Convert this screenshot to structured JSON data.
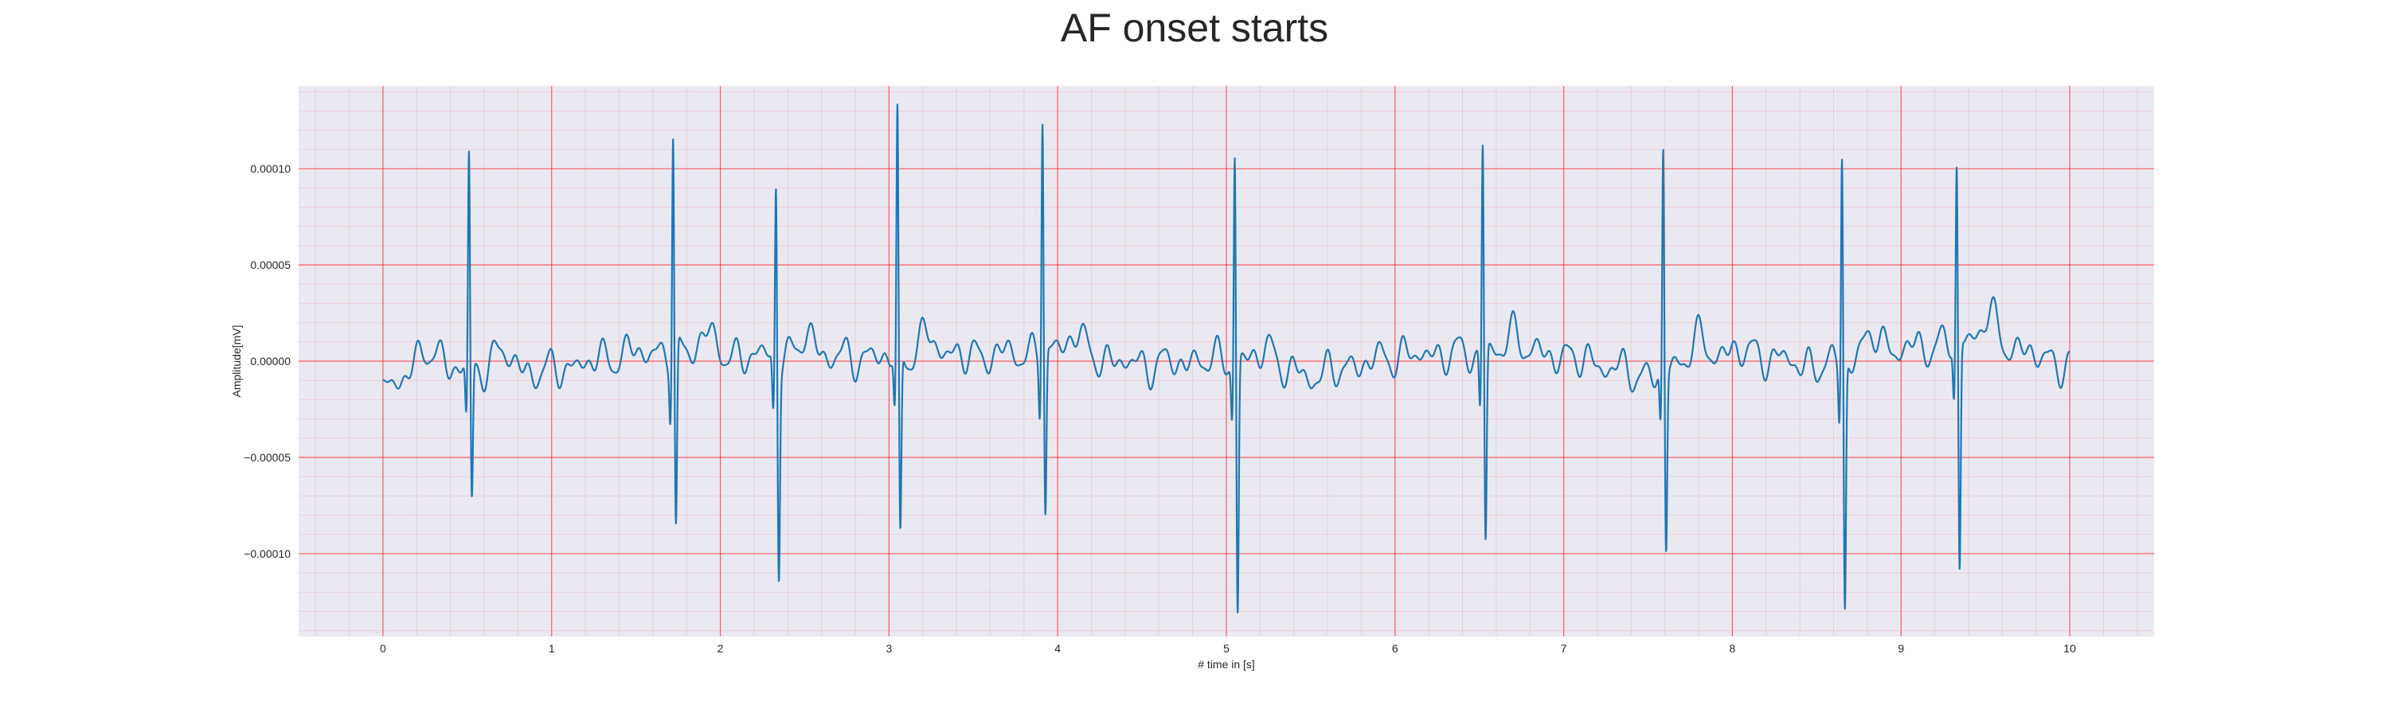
{
  "chart_data": {
    "type": "line",
    "title": "AF onset starts",
    "xlabel": "# time in [s]",
    "ylabel": "Amplitude[mV]",
    "xlim": [
      -0.5,
      10.5
    ],
    "ylim": [
      -0.000143,
      0.000143
    ],
    "xticks": [
      0,
      1,
      2,
      3,
      4,
      5,
      6,
      7,
      8,
      9,
      10
    ],
    "xtick_labels": [
      "0",
      "1",
      "2",
      "3",
      "4",
      "5",
      "6",
      "7",
      "8",
      "9",
      "10"
    ],
    "yticks": [
      0.0001,
      5e-05,
      0,
      -5e-05,
      -0.0001
    ],
    "ytick_labels": [
      "0.00010",
      "0.00005",
      "0.00000",
      "−0.00005",
      "−0.00010"
    ],
    "grid": "major and minor grid, red",
    "line_color": "#1f77b4",
    "background_color": "#eae9f2",
    "grid_color": "#ff0000",
    "r_peaks": [
      {
        "t": 0.51,
        "r": 0.000111,
        "s": -7.1e-05
      },
      {
        "t": 1.72,
        "r": 0.000118,
        "s": -9.6e-05
      },
      {
        "t": 2.33,
        "r": 9.6e-05,
        "s": -0.000107
      },
      {
        "t": 3.05,
        "r": 0.000128,
        "s": -9.6e-05
      },
      {
        "t": 3.91,
        "r": 0.000128,
        "s": -8.5e-05
      },
      {
        "t": 5.05,
        "r": 0.000114,
        "s": -0.000131
      },
      {
        "t": 6.52,
        "r": 0.000114,
        "s": -9.9e-05
      },
      {
        "t": 7.59,
        "r": 0.000117,
        "s": -9.4e-05
      },
      {
        "t": 8.65,
        "r": 0.000114,
        "s": -0.000129
      },
      {
        "t": 9.33,
        "r": 9.3e-05,
        "s": -0.000121
      }
    ],
    "baseline_samples": {
      "x": [
        0.0,
        0.25,
        0.5,
        1.0,
        1.5,
        2.0,
        2.5,
        3.0,
        3.5,
        4.0,
        4.5,
        5.0,
        5.5,
        6.0,
        6.5,
        7.0,
        7.5,
        8.0,
        8.5,
        9.0,
        9.5,
        10.0
      ],
      "y": [
        -1.8e-05,
        5e-06,
        -5e-06,
        -5e-06,
        5e-06,
        3e-06,
        2e-06,
        2e-06,
        3e-06,
        5e-06,
        -2e-06,
        1e-06,
        -8e-06,
        3e-06,
        4e-06,
        3e-06,
        -8e-06,
        6e-06,
        -3e-06,
        6e-06,
        1.2e-05,
        -3e-06
      ]
    }
  }
}
